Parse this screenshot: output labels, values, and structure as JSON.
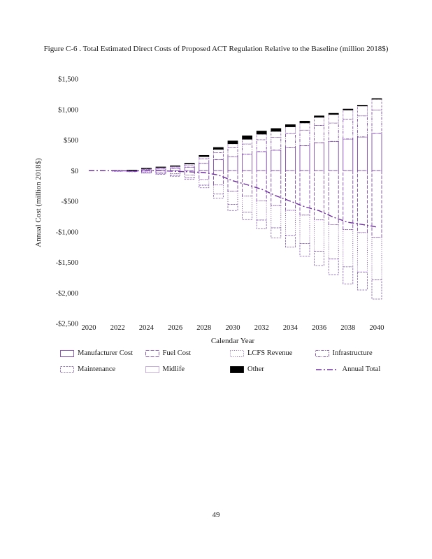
{
  "page": {
    "number": "49"
  },
  "caption": {
    "text": "Figure C-6 . Total Estimated Direct Costs of Proposed ACT Regulation Relative to the Baseline (million 2018$)"
  },
  "chart_data": {
    "type": "bar",
    "stacked": true,
    "title": "Total Estimated Direct Costs of Proposed ACT Regulation Relative to the Baseline (million 2018$)",
    "xlabel": "Calendar Year",
    "ylabel": "Annual Cost (million 2018$)",
    "ylim": [
      -2500,
      1500
    ],
    "grid": false,
    "legend_position": "bottom",
    "years": [
      2020,
      2021,
      2022,
      2023,
      2024,
      2025,
      2026,
      2027,
      2028,
      2029,
      2030,
      2031,
      2032,
      2033,
      2034,
      2035,
      2036,
      2037,
      2038,
      2039,
      2040
    ],
    "xticks": [
      2020,
      2022,
      2024,
      2026,
      2028,
      2030,
      2032,
      2034,
      2036,
      2038,
      2040
    ],
    "yticks": [
      {
        "value": 1500,
        "label": "$1,500"
      },
      {
        "value": 1000,
        "label": "$1,000"
      },
      {
        "value": 500,
        "label": "$500"
      },
      {
        "value": 0,
        "label": "$0"
      },
      {
        "value": -500,
        "label": "-$500"
      },
      {
        "value": -1000,
        "label": "-$1,000"
      },
      {
        "value": -1500,
        "label": "-$1,500"
      },
      {
        "value": -2000,
        "label": "-$2,000"
      },
      {
        "value": -2500,
        "label": "-$2,500"
      }
    ],
    "series": [
      {
        "name": "Manufacturer Cost",
        "color": "#7030a0",
        "dash": "",
        "fill": "#ffffff",
        "values": [
          0,
          0,
          2,
          5,
          19,
          29,
          38,
          58,
          120,
          182,
          230,
          269,
          312,
          336,
          374,
          408,
          456,
          480,
          518,
          552,
          610
        ]
      },
      {
        "name": "Fuel Cost",
        "color": "#7030a0",
        "dash": "5,2",
        "fill": "#ffffff",
        "values": [
          0,
          0,
          -3,
          -8,
          -21,
          -31,
          -47,
          -73,
          -146,
          -234,
          -338,
          -416,
          -494,
          -572,
          -650,
          -728,
          -806,
          -884,
          -962,
          -1014,
          -1092
        ]
      },
      {
        "name": "LCFS Revenue",
        "color": "#7030a0",
        "dash": "1,1.8",
        "fill": "#ffffff",
        "values": [
          0,
          0,
          -2,
          -5,
          -13,
          -20,
          -30,
          -46,
          -92,
          -149,
          -215,
          -264,
          -314,
          -363,
          -413,
          -462,
          -512,
          -561,
          -611,
          -644,
          -693
        ]
      },
      {
        "name": "Infrastructure",
        "color": "#7030a0",
        "dash": "4,1.5,1,1.5",
        "fill": "#ffffff",
        "values": [
          0,
          0,
          2,
          3,
          12,
          18,
          24,
          36,
          75,
          114,
          144,
          168,
          195,
          210,
          234,
          255,
          285,
          300,
          324,
          345,
          381
        ]
      },
      {
        "name": "Maintenance",
        "color": "#7a52a8",
        "dash": "2.5,1.5",
        "fill": "#ffffff",
        "values": [
          0,
          0,
          -1,
          -2,
          -6,
          -9,
          -14,
          -21,
          -42,
          -68,
          -98,
          -120,
          -143,
          -165,
          -188,
          -210,
          -233,
          -255,
          -278,
          -293,
          -315
        ]
      },
      {
        "name": "Midlife",
        "color": "#7030a0",
        "dash": "1,1",
        "fill": "#ffffff",
        "values": [
          0,
          0,
          1,
          1,
          6,
          8,
          11,
          17,
          35,
          53,
          67,
          78,
          91,
          98,
          109,
          119,
          133,
          140,
          151,
          161,
          178
        ]
      },
      {
        "name": "Other",
        "color": "#000000",
        "dash": "",
        "fill": "#000000",
        "values": [
          0,
          0,
          0,
          1,
          3,
          5,
          7,
          10,
          20,
          30,
          45,
          55,
          50,
          45,
          35,
          28,
          22,
          18,
          14,
          12,
          10
        ]
      }
    ],
    "annual_total": {
      "name": "Annual Total",
      "color": "#7030a0",
      "dash": "8,3,2,3",
      "values": [
        0,
        0,
        -1,
        -5,
        0,
        0,
        -11,
        -19,
        -30,
        -72,
        -165,
        -230,
        -303,
        -411,
        -499,
        -590,
        -655,
        -762,
        -844,
        -881,
        -921
      ]
    },
    "colors": {
      "accent_purple": "#7030a0",
      "black": "#000000"
    }
  }
}
